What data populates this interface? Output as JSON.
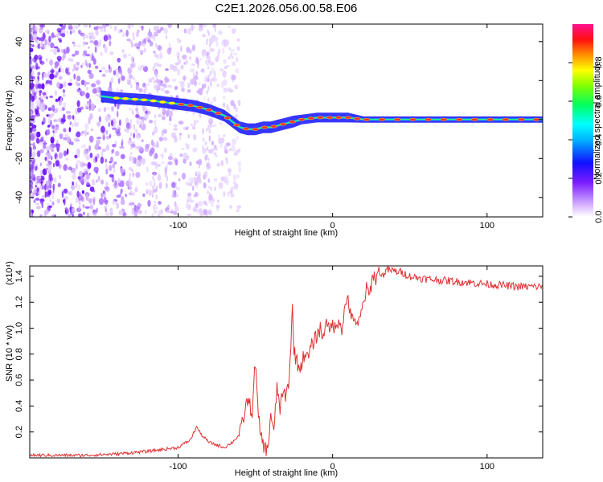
{
  "chart_data": [
    {
      "type": "heatmap",
      "title": "C2E1.2026.056.00.58.E06",
      "xlabel": "Height of straight line (km)",
      "ylabel": "Frequency (Hz)",
      "xlim": [
        -196,
        136
      ],
      "ylim": [
        -50,
        49
      ],
      "x_ticks": [
        -100,
        0,
        100
      ],
      "x_tick_labels": [
        "-100",
        "0",
        "100"
      ],
      "y_ticks": [
        -40,
        -20,
        0,
        20,
        40
      ],
      "y_tick_labels": [
        "-40",
        "-20",
        "0",
        "20",
        "40"
      ],
      "colorbar": {
        "label": "Normalized spectral amplitude",
        "range": [
          0,
          1
        ],
        "ticks": [
          0.0,
          0.2,
          0.4,
          0.6,
          0.8
        ],
        "tick_labels": [
          "0.0",
          "0.2",
          "0.4",
          "0.6",
          "0.8"
        ]
      },
      "ridge": {
        "x": [
          -150,
          -140,
          -120,
          -100,
          -90,
          -80,
          -70,
          -60,
          -55,
          -50,
          -45,
          -40,
          -35,
          -30,
          -25,
          -20,
          -10,
          0,
          10,
          20,
          40,
          60,
          80,
          100,
          120,
          136
        ],
        "freq": [
          12,
          11,
          10,
          8,
          7,
          5,
          2,
          -4,
          -5,
          -5,
          -4,
          -4,
          -3,
          -2,
          -1,
          0,
          1,
          1,
          1,
          0,
          0,
          0,
          0,
          0,
          0,
          0
        ]
      }
    },
    {
      "type": "line",
      "xlabel": "Height of straight line (km)",
      "ylabel": "SNR (10 * v/v)",
      "y_scale_label": "(x10⁴)",
      "xlim": [
        -196,
        136
      ],
      "ylim": [
        0,
        1.48
      ],
      "x_ticks": [
        -100,
        0,
        100
      ],
      "x_tick_labels": [
        "-100",
        "0",
        "100"
      ],
      "y_ticks": [
        0.2,
        0.4,
        0.6,
        0.8,
        1.0,
        1.2,
        1.4
      ],
      "y_tick_labels": [
        "0.2",
        "0.4",
        "0.6",
        "0.8",
        "1.0",
        "1.2",
        "1.4"
      ],
      "series": [
        {
          "name": "SNR",
          "color": "#e03030",
          "x": [
            -196,
            -160,
            -140,
            -120,
            -100,
            -92,
            -88,
            -85,
            -80,
            -75,
            -70,
            -65,
            -60,
            -55,
            -52,
            -50,
            -48,
            -46,
            -44,
            -42,
            -40,
            -38,
            -36,
            -34,
            -32,
            -30,
            -28,
            -26,
            -25,
            -24,
            -22,
            -20,
            -18,
            -16,
            -14,
            -12,
            -10,
            -8,
            -6,
            -4,
            -2,
            0,
            2,
            4,
            6,
            8,
            10,
            12,
            14,
            16,
            18,
            20,
            22,
            24,
            26,
            28,
            30,
            32,
            35,
            40,
            45,
            50,
            60,
            70,
            80,
            90,
            100,
            110,
            120,
            130,
            136
          ],
          "values": [
            0.02,
            0.02,
            0.03,
            0.05,
            0.08,
            0.14,
            0.24,
            0.18,
            0.12,
            0.1,
            0.08,
            0.12,
            0.18,
            0.45,
            0.35,
            0.75,
            0.3,
            0.15,
            0.08,
            0.05,
            0.35,
            0.18,
            0.55,
            0.38,
            0.5,
            0.48,
            0.62,
            1.15,
            0.85,
            0.78,
            0.7,
            0.72,
            0.82,
            0.76,
            0.85,
            0.9,
            0.95,
            1.0,
            0.92,
            1.1,
            0.95,
            1.05,
            0.98,
            1.08,
            1.0,
            1.15,
            1.25,
            1.05,
            1.1,
            1.0,
            1.08,
            1.2,
            1.3,
            1.25,
            1.42,
            1.38,
            1.45,
            1.4,
            1.45,
            1.44,
            1.43,
            1.4,
            1.38,
            1.37,
            1.36,
            1.35,
            1.34,
            1.33,
            1.32,
            1.32,
            1.32
          ]
        }
      ]
    }
  ]
}
